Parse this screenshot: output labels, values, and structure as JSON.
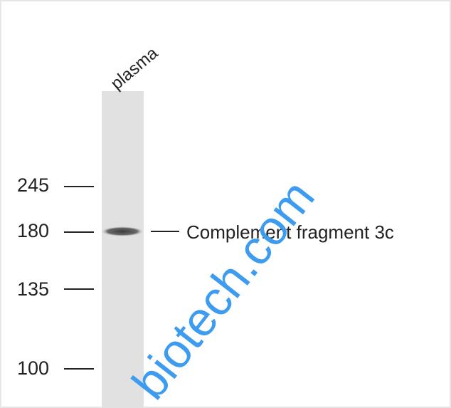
{
  "lanes": [
    {
      "label": "plasma"
    }
  ],
  "markers": [
    {
      "label": "245"
    },
    {
      "label": "180"
    },
    {
      "label": "135"
    },
    {
      "label": "100"
    }
  ],
  "band_label": "Complement fragment 3c",
  "watermark": "biotech.com"
}
